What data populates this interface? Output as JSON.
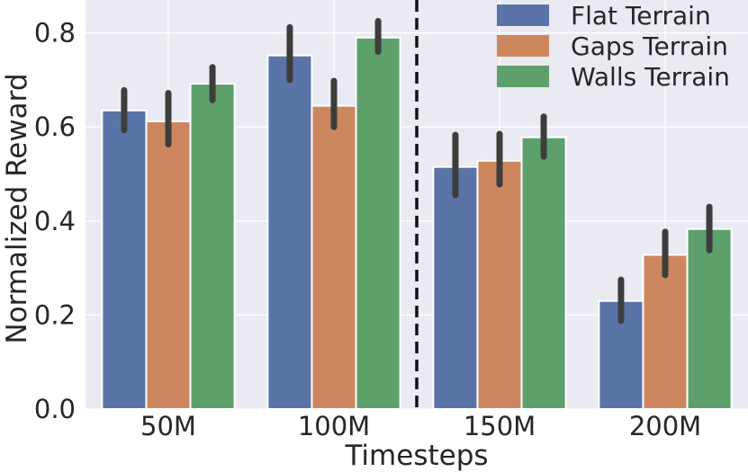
{
  "chart_data": {
    "type": "bar",
    "xlabel": "Timesteps",
    "ylabel": "Normalized Reward",
    "ylim": [
      0.0,
      0.87
    ],
    "yticks": [
      0.0,
      0.2,
      0.4,
      0.6,
      0.8
    ],
    "ytick_labels": [
      "0.0",
      "0.2",
      "0.4",
      "0.6",
      "0.8"
    ],
    "categories": [
      "50M",
      "100M",
      "150M",
      "200M"
    ],
    "series": [
      {
        "name": "Flat Terrain",
        "color": "#5a74a8",
        "values": [
          0.635,
          0.752,
          0.515,
          0.23
        ],
        "err_low": [
          0.593,
          0.7,
          0.455,
          0.188
        ],
        "err_high": [
          0.678,
          0.812,
          0.583,
          0.275
        ]
      },
      {
        "name": "Gaps Terrain",
        "color": "#cd875f",
        "values": [
          0.612,
          0.645,
          0.528,
          0.328
        ],
        "err_low": [
          0.563,
          0.6,
          0.478,
          0.285
        ],
        "err_high": [
          0.672,
          0.698,
          0.585,
          0.377
        ]
      },
      {
        "name": "Walls Terrain",
        "color": "#5ea06c",
        "values": [
          0.692,
          0.79,
          0.578,
          0.383
        ],
        "err_low": [
          0.657,
          0.76,
          0.537,
          0.338
        ],
        "err_high": [
          0.727,
          0.825,
          0.622,
          0.43
        ]
      }
    ],
    "divider_after_category_index": 1,
    "grid": true,
    "legend_position": "top-right",
    "background_color": "#eaeaf2",
    "error_bar_color": "#3d3d3d"
  }
}
